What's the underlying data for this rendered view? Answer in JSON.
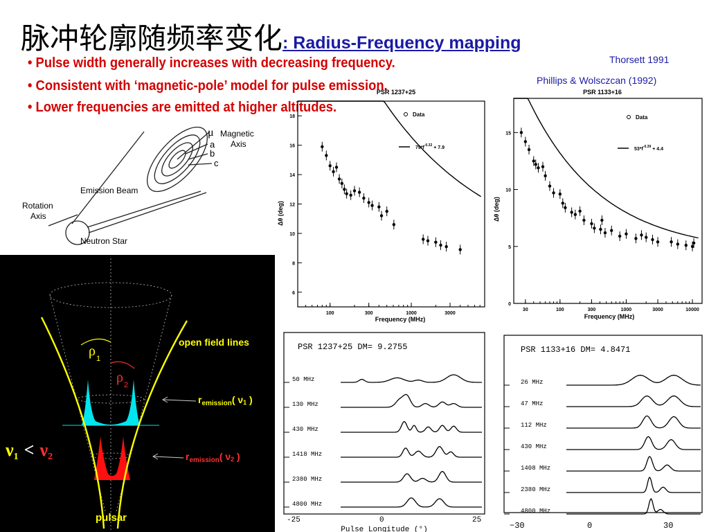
{
  "title": {
    "chinese": "脉冲轮廓随频率变化",
    "english": ": Radius-Frequency mapping"
  },
  "bullets": [
    "• Pulse width generally increases with decreasing frequency.",
    "• Consistent with ‘magnetic-pole’ model for pulse emission.",
    "• Lower frequencies are emitted at higher altitudes."
  ],
  "references": [
    "Thorsett 1991",
    "Phillips & Wolsczcan (1992)"
  ],
  "schematic": {
    "mu": "μ",
    "magnetic_axis": [
      "Magnetic",
      "Axis"
    ],
    "field_lines": [
      "a",
      "b",
      "c"
    ],
    "emission_beam": "Emission Beam",
    "rotation_axis": [
      "Rotation",
      "Axis"
    ],
    "neutron_star": "Neutron Star"
  },
  "cone_diagram": {
    "open_field_lines": "open field lines",
    "rho1": "ρ",
    "rho1_sub": "1",
    "rho2": "ρ",
    "rho2_sub": "2",
    "r_emission_1": {
      "r": "r",
      "sub": "emission",
      "nu": "( ν",
      "nu_sub": "1",
      "close": " )"
    },
    "r_emission_2": {
      "r": "r",
      "sub": "emission",
      "nu": "( ν",
      "nu_sub": "2",
      "close": " )"
    },
    "nu_relation": {
      "nu1": "ν",
      "sub1": "1",
      "lt": "<",
      "nu2": "ν",
      "sub2": "2"
    },
    "pulsar": "pulsar",
    "colors": {
      "background": "#000000",
      "lines": "#ffff00",
      "high_cone": "#00e5ee",
      "low_cone": "#ff0000"
    }
  },
  "chart_data": [
    {
      "type": "scatter",
      "title": "PSR 1237+25",
      "xlabel": "Frequency (MHz)",
      "ylabel": "Δθ (deg)",
      "xscale": "log",
      "xlim": [
        40,
        8000
      ],
      "ylim": [
        5,
        19
      ],
      "xticks": [
        "100",
        "300",
        "1000",
        "3000"
      ],
      "yticks": [
        "6",
        "8",
        "10",
        "12",
        "14",
        "16",
        "18"
      ],
      "legend": {
        "data": "Data",
        "fit": "79*f^-0.32 + 7.9",
        "fit_sup": "-0.32",
        "fit_main": "79*f",
        "fit_tail": " + 7.9"
      },
      "fit": {
        "a": 79,
        "b": -0.32,
        "c": 7.9
      },
      "x": [
        80,
        90,
        100,
        110,
        120,
        130,
        140,
        150,
        160,
        180,
        200,
        230,
        260,
        300,
        330,
        400,
        430,
        500,
        610,
        1400,
        1600,
        2000,
        2300,
        2700,
        4000
      ],
      "y": [
        15.9,
        15.3,
        14.6,
        14.2,
        14.5,
        13.7,
        13.4,
        13.0,
        12.7,
        12.6,
        12.9,
        12.8,
        12.4,
        12.1,
        11.9,
        11.8,
        11.2,
        11.5,
        10.6,
        9.6,
        9.5,
        9.4,
        9.2,
        9.1,
        8.9
      ]
    },
    {
      "type": "scatter",
      "title": "PSR 1133+16",
      "xlabel": "Frequency (MHz)",
      "ylabel": "Δθ (deg)",
      "xscale": "log",
      "xlim": [
        20,
        14000
      ],
      "ylim": [
        0,
        18
      ],
      "xticks": [
        "30",
        "100",
        "300",
        "1000",
        "3000",
        "10000"
      ],
      "yticks": [
        "0",
        "5",
        "10",
        "15"
      ],
      "legend": {
        "data": "Data",
        "fit": "53*f^-0.39 + 4.4",
        "fit_sup": "-0.39",
        "fit_main": "53*f",
        "fit_tail": " + 4.4"
      },
      "fit": {
        "a": 53,
        "b": -0.39,
        "c": 4.4
      },
      "x": [
        26,
        30,
        34,
        40,
        43,
        47,
        55,
        60,
        70,
        80,
        100,
        110,
        120,
        150,
        170,
        200,
        230,
        300,
        330,
        410,
        430,
        480,
        600,
        800,
        1000,
        1400,
        1700,
        2000,
        2500,
        3000,
        4800,
        6000,
        8000,
        10000,
        10500
      ],
      "y": [
        15.0,
        14.2,
        13.5,
        12.5,
        12.2,
        11.9,
        12.0,
        11.2,
        10.3,
        9.7,
        9.6,
        8.8,
        8.4,
        8.0,
        7.8,
        8.1,
        7.3,
        7.0,
        6.6,
        6.5,
        7.3,
        6.2,
        6.4,
        5.9,
        6.1,
        5.7,
        6.0,
        5.8,
        5.6,
        5.4,
        5.4,
        5.2,
        5.1,
        5.0,
        5.3
      ]
    }
  ],
  "profiles": [
    {
      "header": "PSR  1237+25      DM=  9.2755",
      "xlabel": "Pulse  Longitude  (°)",
      "xticks": [
        "-25",
        "0",
        "25"
      ],
      "rows": [
        "50  MHz",
        "130  MHz",
        "430  MHz",
        "1418  MHz",
        "2380  MHz",
        "4800  MHz"
      ]
    },
    {
      "header": "PSR  1133+16      DM=  4.8471",
      "xlabel": "",
      "xticks": [
        "−30",
        "0",
        "30"
      ],
      "rows": [
        "26 MHz",
        "47 MHz",
        "112 MHz",
        "430 MHz",
        "1408 MHz",
        "2380 MHz",
        "4800 MHz"
      ]
    }
  ]
}
